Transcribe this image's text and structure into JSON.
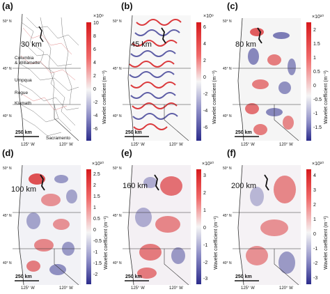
{
  "panels": [
    {
      "id": "a",
      "label": "(a)",
      "wavelength": "30 km",
      "exponent": "×10⁹",
      "colorbar_label": "Wavelet coefficient (m⁻¹)",
      "ticks": [
        "10",
        "8",
        "6",
        "4",
        "2",
        "0",
        "-2",
        "-4",
        "-6"
      ],
      "scale": "250 km",
      "lon_left": "125° W",
      "lon_right": "120° W",
      "lat_top": "50° N",
      "lat_mid": "45° N",
      "lat_bot": "40° N",
      "places": [
        "Columbia",
        "& Willamette",
        "Umpqua",
        "Rogue",
        "Klamath",
        "Sacramento"
      ]
    },
    {
      "id": "b",
      "label": "(b)",
      "wavelength": "45 km",
      "exponent": "×10⁹",
      "colorbar_label": "Wavelet coefficient (m⁻¹)",
      "ticks": [
        "6",
        "4",
        "2",
        "0",
        "-2",
        "-4",
        "-6"
      ],
      "scale": "250 km",
      "lon_left": "125° W",
      "lon_right": "120° W",
      "lat_top": "50° N",
      "lat_mid": "45° N",
      "lat_bot": "40° N"
    },
    {
      "id": "c",
      "label": "(c)",
      "wavelength": "80 km",
      "exponent": "×10¹⁰",
      "colorbar_label": "Wavelet coefficient (m⁻¹)",
      "ticks": [
        "2",
        "1.5",
        "1",
        "0.5",
        "0",
        "-0.5",
        "-1",
        "-1.5"
      ],
      "scale": "250 km",
      "lon_left": "125° W",
      "lon_right": "120° W",
      "lat_top": "50° N",
      "lat_mid": "45° N",
      "lat_bot": "40° N"
    },
    {
      "id": "d",
      "label": "(d)",
      "wavelength": "100 km",
      "exponent": "×10¹⁰",
      "colorbar_label": "Wavelet coefficient (m⁻¹)",
      "ticks": [
        "2.5",
        "2",
        "1.5",
        "1",
        "0.5",
        "0",
        "-0.5",
        "-1",
        "-1.5",
        "-2"
      ],
      "scale": "250 km",
      "lon_left": "125° W",
      "lon_right": "120° W",
      "lat_top": "50° N",
      "lat_mid": "45° N",
      "lat_bot": "40° N"
    },
    {
      "id": "e",
      "label": "(e)",
      "wavelength": "160 km",
      "exponent": "×10¹⁰",
      "colorbar_label": "Wavelet coefficient (m⁻¹)",
      "ticks": [
        "3",
        "2",
        "1",
        "0",
        "-1",
        "-2",
        "-3"
      ],
      "scale": "250 km",
      "lon_left": "125° W",
      "lon_right": "120° W",
      "lat_top": "50° N",
      "lat_mid": "45° N",
      "lat_bot": "40° N"
    },
    {
      "id": "f",
      "label": "(f)",
      "wavelength": "200 km",
      "exponent": "×10¹⁰",
      "colorbar_label": "Wavelet coefficient (m⁻¹)",
      "ticks": [
        "4",
        "3",
        "2",
        "1",
        "0",
        "-1",
        "-2",
        "-3"
      ],
      "scale": "250 km",
      "lon_left": "125° W",
      "lon_right": "120° W",
      "lat_top": "50° N",
      "lat_mid": "45° N",
      "lat_bot": "40° N"
    }
  ],
  "colors": {
    "positive": "#d7191c",
    "neutral": "#f2f2f2",
    "negative": "#2c2c8c",
    "land_outline": "#333333"
  }
}
